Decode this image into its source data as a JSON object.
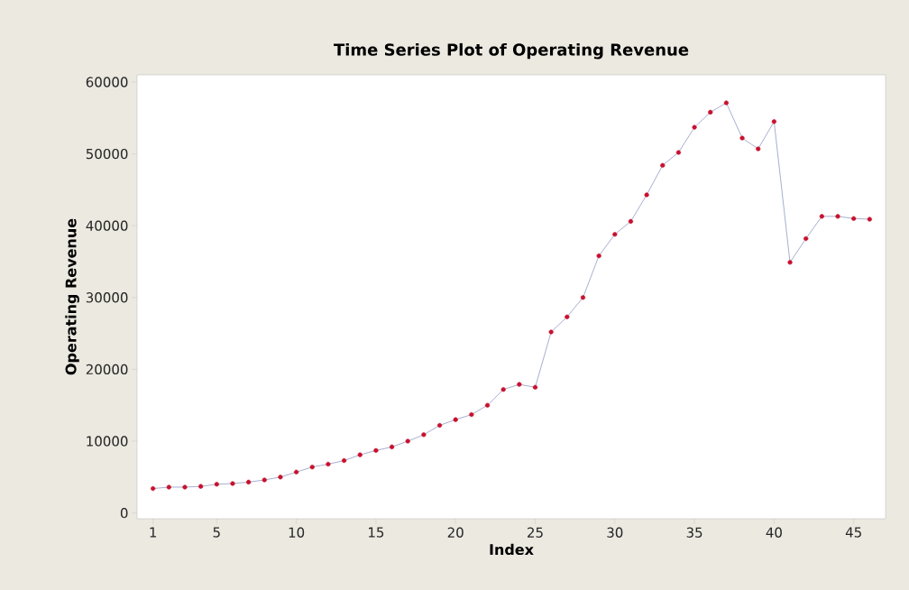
{
  "chart_data": {
    "type": "line",
    "title": "Time Series Plot of Operating Revenue",
    "xlabel": "Index",
    "ylabel": "Operating Revenue",
    "x": [
      1,
      2,
      3,
      4,
      5,
      6,
      7,
      8,
      9,
      10,
      11,
      12,
      13,
      14,
      15,
      16,
      17,
      18,
      19,
      20,
      21,
      22,
      23,
      24,
      25,
      26,
      27,
      28,
      29,
      30,
      31,
      32,
      33,
      34,
      35,
      36,
      37,
      38,
      39,
      40,
      41,
      42,
      43,
      44,
      45,
      46
    ],
    "series": [
      {
        "color": "#c8102e",
        "values": [
          3400,
          3600,
          3600,
          3700,
          4000,
          4100,
          4300,
          4600,
          5000,
          5700,
          6400,
          6800,
          7300,
          8100,
          8700,
          9200,
          10000,
          10900,
          12200,
          13000,
          13700,
          15000,
          17200,
          17900,
          17500,
          25200,
          27300,
          30000,
          35800,
          38800,
          40600,
          44300,
          48400,
          50200,
          53700,
          55800,
          57100,
          52200,
          50700,
          54500,
          34900,
          38200,
          41300,
          41300,
          41000,
          40900
        ]
      }
    ],
    "xlim": [
      0,
      47
    ],
    "ylim": [
      -800,
      61000
    ],
    "xticks": [
      1,
      5,
      10,
      15,
      20,
      25,
      30,
      35,
      40,
      45
    ],
    "yticks": [
      0,
      10000,
      20000,
      30000,
      40000,
      50000,
      60000
    ],
    "marker": "circle",
    "line_style": "solid",
    "grid": false
  }
}
